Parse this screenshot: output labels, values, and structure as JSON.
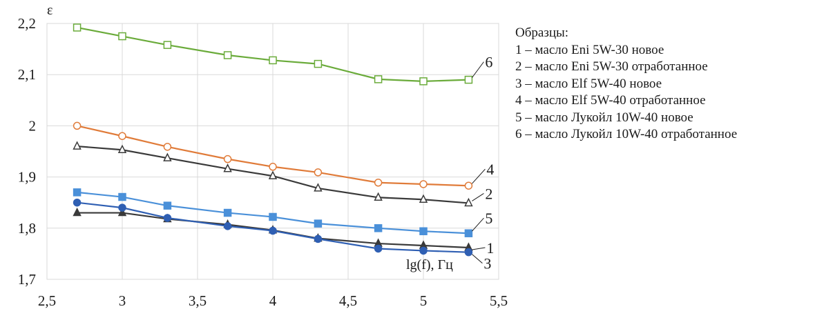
{
  "chart_data": {
    "type": "line",
    "xlabel": "lg(f), Гц",
    "ylabel": "ε",
    "xlim": [
      2.5,
      5.5
    ],
    "ylim": [
      1.7,
      2.2
    ],
    "x_ticks": [
      "2,5",
      "3",
      "3,5",
      "4",
      "4,5",
      "5",
      "5,5"
    ],
    "y_ticks": [
      "1,7",
      "1,8",
      "1,9",
      "2",
      "2,1",
      "2,2"
    ],
    "grid": true,
    "x": [
      2.7,
      3.0,
      3.3,
      3.7,
      4.0,
      4.3,
      4.7,
      5.0,
      5.3
    ],
    "series": [
      {
        "label": "1",
        "color": "#3a3a3a",
        "marker": "triangle-filled",
        "values": [
          1.83,
          1.83,
          1.818,
          1.807,
          1.796,
          1.78,
          1.77,
          1.766,
          1.762
        ]
      },
      {
        "label": "2",
        "color": "#3a3a3a",
        "marker": "triangle-open",
        "values": [
          1.96,
          1.953,
          1.937,
          1.916,
          1.902,
          1.878,
          1.86,
          1.856,
          1.849
        ]
      },
      {
        "label": "3",
        "color": "#2f5fb3",
        "marker": "circle-filled",
        "values": [
          1.85,
          1.84,
          1.82,
          1.804,
          1.795,
          1.779,
          1.76,
          1.756,
          1.753
        ]
      },
      {
        "label": "4",
        "color": "#e07b39",
        "marker": "circle-open",
        "values": [
          2.0,
          1.98,
          1.959,
          1.935,
          1.92,
          1.909,
          1.889,
          1.886,
          1.883
        ]
      },
      {
        "label": "5",
        "color": "#4a90d9",
        "marker": "square-filled",
        "values": [
          1.87,
          1.861,
          1.844,
          1.83,
          1.822,
          1.809,
          1.8,
          1.794,
          1.79
        ]
      },
      {
        "label": "6",
        "color": "#6aab3a",
        "marker": "square-open",
        "values": [
          2.192,
          2.175,
          2.158,
          2.138,
          2.128,
          2.121,
          2.091,
          2.087,
          2.09
        ]
      }
    ]
  },
  "legend": {
    "title": "Образцы:",
    "items": [
      "1 – масло Eni 5W-30 новое",
      "2 – масло Eni 5W-30 отработанное",
      "3 – масло Elf 5W-40 новое",
      "4 – масло Elf 5W-40 отработанное",
      "5 – масло Лукойл 10W-40 новое",
      "6 – масло Лукойл 10W-40 отработанное"
    ]
  }
}
